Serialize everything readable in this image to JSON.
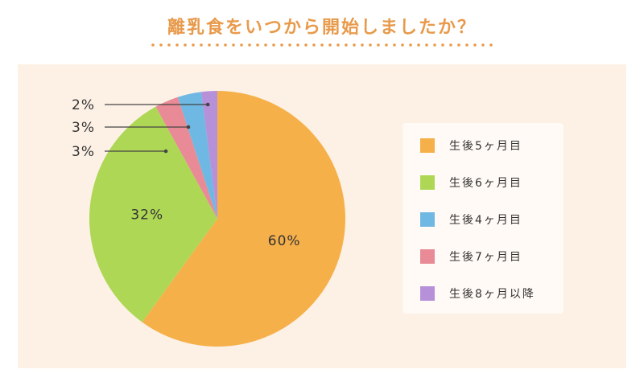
{
  "title": "離乳食をいつから開始しましたか？",
  "chart_data": {
    "type": "pie",
    "title": "離乳食をいつから開始しましたか？",
    "series": [
      {
        "name": "生後5ヶ月目",
        "value": 60,
        "label": "60%",
        "color": "#f6b04a"
      },
      {
        "name": "生後6ヶ月目",
        "value": 32,
        "label": "32%",
        "color": "#afd756"
      },
      {
        "name": "生後7ヶ月目",
        "value": 3,
        "label": "3%",
        "color": "#e88b96"
      },
      {
        "name": "生後4ヶ月目",
        "value": 3,
        "label": "3%",
        "color": "#6fb8e3"
      },
      {
        "name": "生後8ヶ月以降",
        "value": 2,
        "label": "2%",
        "color": "#b691d9"
      }
    ],
    "legend": [
      "生後5ヶ月目",
      "生後6ヶ月目",
      "生後4ヶ月目",
      "生後7ヶ月目",
      "生後8ヶ月以降"
    ],
    "legend_placement": "right"
  },
  "colors": {
    "title": "#e89a4b",
    "panel": "#fdf1e6",
    "legend_bg": "#fffaf5"
  }
}
